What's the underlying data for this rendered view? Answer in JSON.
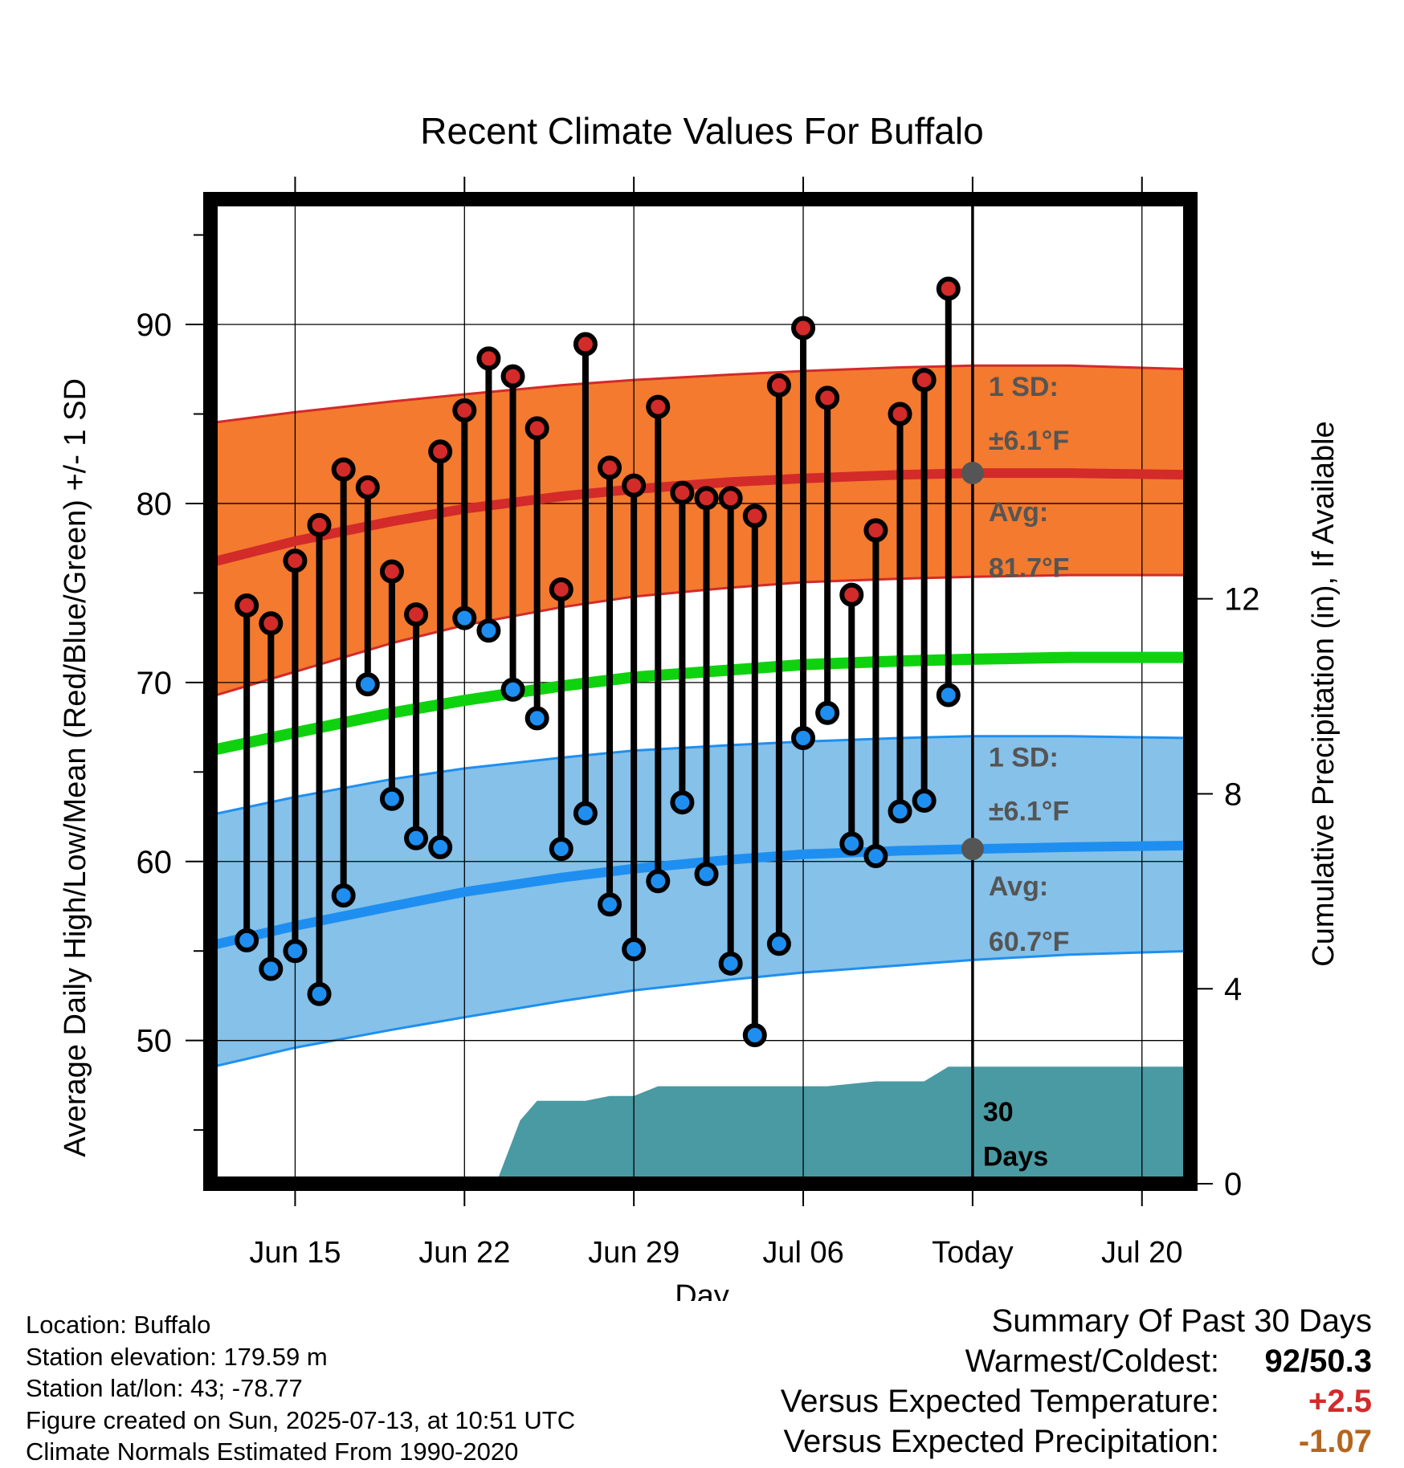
{
  "chart_data": {
    "type": "line",
    "title": "Recent Climate Values For Buffalo",
    "xlabel": "Day",
    "ylabel": "Average Daily High/Low/Mean (Red/Blue/Green) +/- 1 SD",
    "y2label": "Cumulative Precipitation (in), If Available",
    "x_ticks": [
      "Jun 15",
      "Jun 22",
      "Jun 29",
      "Jul 06",
      "Today",
      "Jul 20"
    ],
    "x_tick_days": [
      3,
      10,
      17,
      24,
      31,
      38
    ],
    "x_range_days": [
      -0.5,
      40
    ],
    "today_day": 31,
    "ylim": [
      42,
      97
    ],
    "y_ticks": [
      50,
      60,
      70,
      80,
      90
    ],
    "y2lim": [
      0,
      20.2
    ],
    "y2_ticks": [
      0,
      4,
      8,
      12
    ],
    "grid": true,
    "colors": {
      "high_band": "#f37a2e",
      "high_line": "#d32a2a",
      "low_band": "#85c1e9",
      "low_line": "#1e8ff0",
      "mean_line": "#0fd20f",
      "precip": "#4a9aa3",
      "high_dot": "#d32a2a",
      "low_dot": "#1e8ff0",
      "annotation": "#555555"
    },
    "normals": {
      "days": [
        -0.5,
        3,
        7,
        10,
        14,
        17,
        21,
        24,
        28,
        31,
        35,
        40
      ],
      "high_avg": [
        76.7,
        77.9,
        79.0,
        79.7,
        80.4,
        80.8,
        81.2,
        81.4,
        81.6,
        81.7,
        81.7,
        81.6
      ],
      "high_upper": [
        84.5,
        85.1,
        85.7,
        86.1,
        86.6,
        86.9,
        87.2,
        87.4,
        87.6,
        87.7,
        87.7,
        87.5
      ],
      "high_lower": [
        69.2,
        70.6,
        72.2,
        73.2,
        74.2,
        74.8,
        75.3,
        75.6,
        75.8,
        75.9,
        76.0,
        76.0
      ],
      "mean_avg": [
        66.2,
        67.2,
        68.3,
        69.0,
        69.8,
        70.3,
        70.7,
        71.0,
        71.2,
        71.3,
        71.4,
        71.4
      ],
      "low_avg": [
        55.3,
        56.4,
        57.5,
        58.3,
        59.1,
        59.6,
        60.1,
        60.4,
        60.6,
        60.7,
        60.8,
        60.9
      ],
      "low_upper": [
        62.6,
        63.6,
        64.6,
        65.2,
        65.8,
        66.2,
        66.5,
        66.7,
        66.9,
        67.0,
        67.0,
        66.9
      ],
      "low_lower": [
        48.5,
        49.6,
        50.6,
        51.3,
        52.2,
        52.8,
        53.4,
        53.8,
        54.2,
        54.5,
        54.8,
        55.0
      ]
    },
    "series": [
      {
        "name": "High",
        "x": [
          1,
          2,
          3,
          4,
          5,
          6,
          7,
          8,
          9,
          10,
          11,
          12,
          13,
          14,
          15,
          16,
          17,
          18,
          19,
          20,
          21,
          22,
          23,
          24,
          25,
          26,
          27,
          28,
          29,
          30
        ],
        "values": [
          74.3,
          73.3,
          76.8,
          78.8,
          81.9,
          80.9,
          76.2,
          73.8,
          82.9,
          85.2,
          88.1,
          87.1,
          84.2,
          75.2,
          88.9,
          82.0,
          81.0,
          85.4,
          80.6,
          80.3,
          80.3,
          79.3,
          86.6,
          89.8,
          85.9,
          74.9,
          78.5,
          85.0,
          86.9,
          92.0
        ]
      },
      {
        "name": "Low",
        "x": [
          1,
          2,
          3,
          4,
          5,
          6,
          7,
          8,
          9,
          10,
          11,
          12,
          13,
          14,
          15,
          16,
          17,
          18,
          19,
          20,
          21,
          22,
          23,
          24,
          25,
          26,
          27,
          28,
          29,
          30
        ],
        "values": [
          55.6,
          54.0,
          55.0,
          52.6,
          58.1,
          69.9,
          63.5,
          61.3,
          60.8,
          73.6,
          72.9,
          69.6,
          68.0,
          60.7,
          62.7,
          57.6,
          55.1,
          58.9,
          63.3,
          59.3,
          54.3,
          50.3,
          55.4,
          66.9,
          68.3,
          61.0,
          60.3,
          62.8,
          63.4,
          69.3
        ]
      },
      {
        "name": "Precipitation",
        "axis": "y2",
        "x": [
          11.3,
          12.3,
          13,
          14,
          15,
          16,
          17,
          18,
          19,
          20,
          21,
          22,
          23,
          24,
          25,
          27,
          28,
          29,
          30,
          40
        ],
        "values": [
          0,
          1.3,
          1.7,
          1.7,
          1.7,
          1.8,
          1.8,
          2.0,
          2.0,
          2.0,
          2.0,
          2.0,
          2.0,
          2.0,
          2.0,
          2.1,
          2.1,
          2.1,
          2.4,
          2.4
        ]
      }
    ],
    "annotations": {
      "high_sd": "1 SD:",
      "high_sd_value": "±6.1°F",
      "high_avg_label": "Avg:",
      "high_avg_value": "81.7°F",
      "low_sd": "1 SD:",
      "low_sd_value": "±6.1°F",
      "low_avg_label": "Avg:",
      "low_avg_value": "60.7°F",
      "window_days": "30",
      "window_unit": "Days"
    }
  },
  "meta": {
    "location": "Location: Buffalo",
    "elevation": "Station elevation: 179.59 m",
    "latlon": "Station lat/lon: 43; -78.77",
    "created": "Figure created on Sun, 2025-07-13, at 10:51 UTC",
    "normals": "Climate Normals Estimated From 1990-2020"
  },
  "summary": {
    "title": "Summary Of Past 30 Days",
    "warm_cold_label": "Warmest/Coldest:",
    "warm_cold_value": "92/50.3",
    "temp_label": "Versus Expected Temperature:",
    "temp_value": "+2.5",
    "temp_color": "#d32a2a",
    "precip_label": "Versus Expected Precipitation:",
    "precip_value": "-1.07",
    "precip_color": "#b5651d"
  }
}
